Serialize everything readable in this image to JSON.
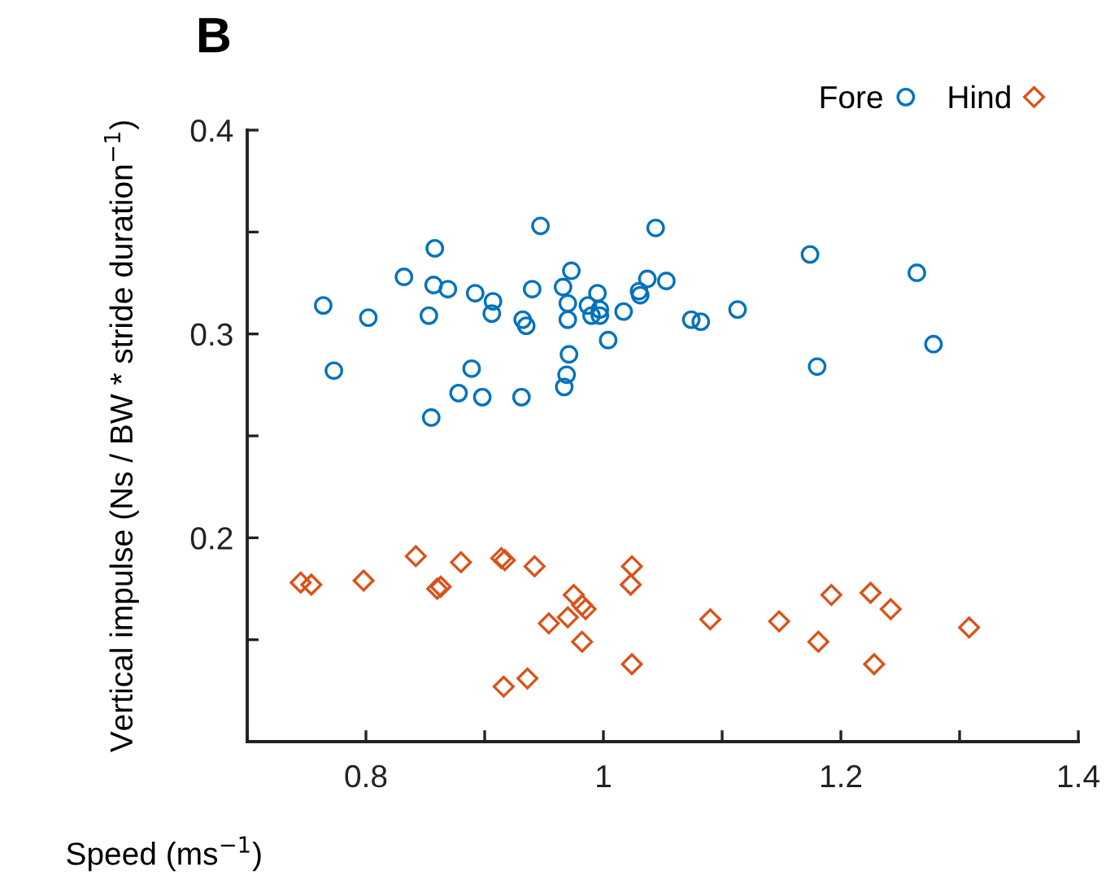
{
  "chart_data": {
    "type": "scatter",
    "title": "B",
    "xlabel": "Speed (ms$^{−1}$)",
    "ylabel": "Vertical impulse (Ns / BW * stride duration$^{−1}$)",
    "xlim": [
      0.7,
      1.4
    ],
    "ylim": [
      0.1,
      0.4
    ],
    "xticks": [
      {
        "value": 0.7,
        "label": null
      },
      0.8,
      {
        "value": 0.9,
        "label": null
      },
      1,
      {
        "value": 1.1,
        "label": null
      },
      1.2,
      {
        "value": 1.3,
        "label": null
      },
      1.4
    ],
    "yticks": [
      {
        "value": 0.1,
        "label": null
      },
      {
        "value": 0.15,
        "label": null
      },
      0.2,
      {
        "value": 0.25,
        "label": null
      },
      0.3,
      {
        "value": 0.35,
        "label": null
      },
      0.4
    ],
    "grid": false,
    "legend": "top right",
    "series": [
      {
        "name": "Fore",
        "color": "#0072bd",
        "marker": "circle",
        "x": [
          0.764,
          0.802,
          0.773,
          0.832,
          0.858,
          0.857,
          0.869,
          0.853,
          0.855,
          0.878,
          0.889,
          0.892,
          0.898,
          0.907,
          0.906,
          0.931,
          0.932,
          0.935,
          0.94,
          0.947,
          0.966,
          0.973,
          0.97,
          0.97,
          0.971,
          0.969,
          0.967,
          0.995,
          0.987,
          0.99,
          0.997,
          0.997,
          1.004,
          1.017,
          1.031,
          1.03,
          1.037,
          1.044,
          1.053,
          1.074,
          1.082,
          1.113,
          1.174,
          1.18,
          1.264,
          1.278
        ],
        "values": [
          0.314,
          0.308,
          0.282,
          0.328,
          0.342,
          0.324,
          0.322,
          0.309,
          0.259,
          0.271,
          0.283,
          0.32,
          0.269,
          0.316,
          0.31,
          0.269,
          0.307,
          0.304,
          0.322,
          0.353,
          0.323,
          0.331,
          0.315,
          0.307,
          0.29,
          0.28,
          0.274,
          0.32,
          0.314,
          0.309,
          0.312,
          0.309,
          0.297,
          0.311,
          0.319,
          0.321,
          0.327,
          0.352,
          0.326,
          0.307,
          0.306,
          0.312,
          0.339,
          0.284,
          0.33,
          0.295
        ]
      },
      {
        "name": "Hind",
        "color": "#d95319",
        "marker": "diamond",
        "x": [
          0.745,
          0.754,
          0.798,
          0.842,
          0.86,
          0.863,
          0.88,
          0.914,
          0.917,
          0.942,
          0.916,
          0.936,
          0.954,
          0.97,
          0.975,
          0.982,
          0.985,
          0.982,
          1.024,
          1.023,
          1.024,
          1.09,
          1.148,
          1.181,
          1.192,
          1.225,
          1.242,
          1.228,
          1.308
        ],
        "values": [
          0.178,
          0.177,
          0.179,
          0.191,
          0.175,
          0.176,
          0.188,
          0.19,
          0.189,
          0.186,
          0.127,
          0.131,
          0.158,
          0.161,
          0.172,
          0.167,
          0.165,
          0.149,
          0.186,
          0.177,
          0.138,
          0.16,
          0.159,
          0.149,
          0.172,
          0.173,
          0.165,
          0.138,
          0.156
        ]
      }
    ]
  }
}
